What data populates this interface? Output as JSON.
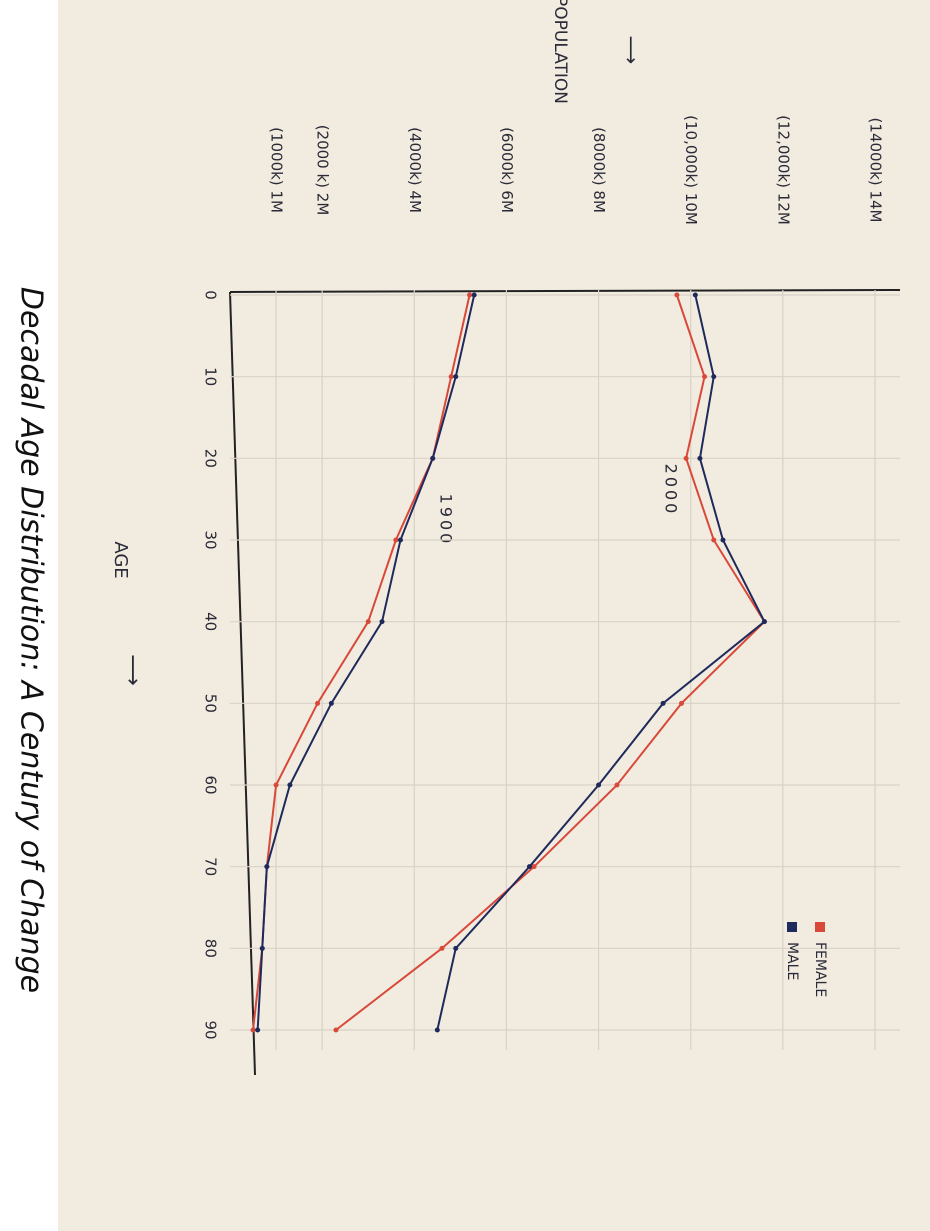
{
  "chart_data": {
    "type": "line",
    "title": "Decadal Age Distribution: A Century of Change",
    "x_label": "AGE",
    "y_label": "POPULATION",
    "x": [
      0,
      10,
      20,
      30,
      40,
      50,
      60,
      70,
      80,
      90
    ],
    "xlim": [
      0,
      90
    ],
    "xticks": [
      0,
      10,
      20,
      30,
      40,
      50,
      60,
      70,
      80,
      90
    ],
    "ylim": [
      0,
      14
    ],
    "yticks": [
      {
        "value": 1,
        "label": "(1000k) 1M"
      },
      {
        "value": 2,
        "label": "(2000 k) 2M"
      },
      {
        "value": 4,
        "label": "(4000k) 4M"
      },
      {
        "value": 6,
        "label": "(6000k) 6M"
      },
      {
        "value": 8,
        "label": "(8000k) 8M"
      },
      {
        "value": 10,
        "label": "(10,000k) 10M"
      },
      {
        "value": 12,
        "label": "(12,000k) 12M"
      },
      {
        "value": 14,
        "label": "(14000k) 14M"
      }
    ],
    "grid": true,
    "legend": "bottom-right",
    "groups": [
      {
        "label": "2000",
        "series": [
          {
            "name": "FEMALE",
            "color": "#d8493a",
            "values": [
              9.7,
              10.3,
              9.9,
              10.5,
              11.6,
              9.8,
              8.4,
              6.6,
              4.6,
              2.3
            ]
          },
          {
            "name": "MALE",
            "color": "#1f2a5c",
            "values": [
              10.1,
              10.5,
              10.2,
              10.7,
              11.6,
              9.4,
              8.0,
              6.5,
              4.9,
              4.5
            ]
          }
        ]
      },
      {
        "label": "1900",
        "series": [
          {
            "name": "FEMALE",
            "color": "#d8493a",
            "values": [
              5.2,
              4.8,
              4.4,
              3.6,
              3.0,
              1.9,
              1.0,
              0.8,
              0.7,
              0.5
            ]
          },
          {
            "name": "MALE",
            "color": "#1f2a5c",
            "values": [
              5.3,
              4.9,
              4.4,
              3.7,
              3.3,
              2.2,
              1.3,
              0.8,
              0.7,
              0.6
            ]
          }
        ]
      }
    ]
  }
}
